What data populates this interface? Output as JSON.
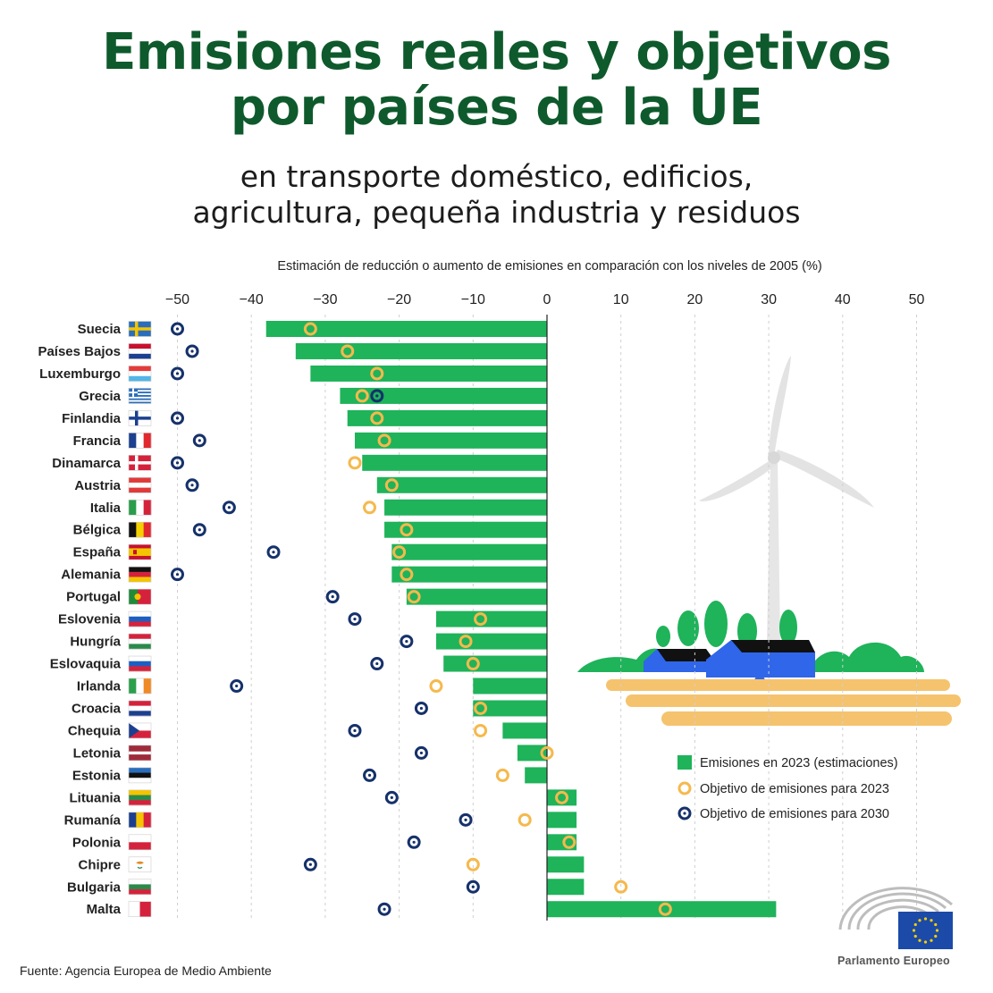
{
  "title_line1": "Emisiones reales y objetivos",
  "title_line2": "por países de la UE",
  "subtitle_line1": "en transporte doméstico, edificios,",
  "subtitle_line2": "agricultura, pequeña industria y residuos",
  "source": "Fuente: Agencia Europea de Medio Ambiente",
  "logo_text": "Parlamento Europeo",
  "colors": {
    "bar": "#1fb35a",
    "target2023": "#f5b94d",
    "target2030": "#16316b",
    "title": "#0e5a2c"
  },
  "chart_data": {
    "type": "bar",
    "orientation": "horizontal",
    "xlabel": "Estimación de reducción o aumento de emisiones en comparación con los niveles de 2005 (%)",
    "xlim": [
      -50,
      50
    ],
    "xticks": [
      "−50",
      "−40",
      "−30",
      "−20",
      "−10",
      "0",
      "10",
      "20",
      "30",
      "40",
      "50"
    ],
    "grid": "vertical-dashed",
    "legend_position": "right-middle",
    "legend": [
      "Emisiones en 2023 (estimaciones)",
      "Objetivo de emisiones para 2023",
      "Objetivo de emisiones para 2030"
    ],
    "categories": [
      "Suecia",
      "Países Bajos",
      "Luxemburgo",
      "Grecia",
      "Finlandia",
      "Francia",
      "Dinamarca",
      "Austria",
      "Italia",
      "Bélgica",
      "España",
      "Alemania",
      "Portugal",
      "Eslovenia",
      "Hungría",
      "Eslovaquia",
      "Irlanda",
      "Croacia",
      "Chequia",
      "Letonia",
      "Estonia",
      "Lituania",
      "Rumanía",
      "Polonia",
      "Chipre",
      "Bulgaria",
      "Malta"
    ],
    "series": [
      {
        "name": "Emisiones en 2023 (estimaciones)",
        "values": [
          -38,
          -34,
          -32,
          -28,
          -27,
          -26,
          -25,
          -23,
          -22,
          -22,
          -21,
          -21,
          -19,
          -15,
          -15,
          -14,
          -10,
          -10,
          -6,
          -4,
          -3,
          4,
          4,
          4,
          5,
          5,
          31
        ]
      },
      {
        "name": "Objetivo de emisiones para 2023",
        "values": [
          -32,
          -27,
          -23,
          -25,
          -23,
          -22,
          -26,
          -21,
          -24,
          -19,
          -20,
          -19,
          -18,
          -9,
          -11,
          -10,
          -15,
          -9,
          -9,
          0,
          -6,
          2,
          -3,
          3,
          -10,
          10,
          16
        ]
      },
      {
        "name": "Objetivo de emisiones para 2030",
        "values": [
          -50,
          -48,
          -50,
          -23,
          -50,
          -47,
          -50,
          -48,
          -43,
          -47,
          -37,
          -50,
          -29,
          -26,
          -19,
          -23,
          -42,
          -17,
          -26,
          -17,
          -24,
          -21,
          -11,
          -18,
          -32,
          -10,
          -22
        ]
      }
    ]
  }
}
